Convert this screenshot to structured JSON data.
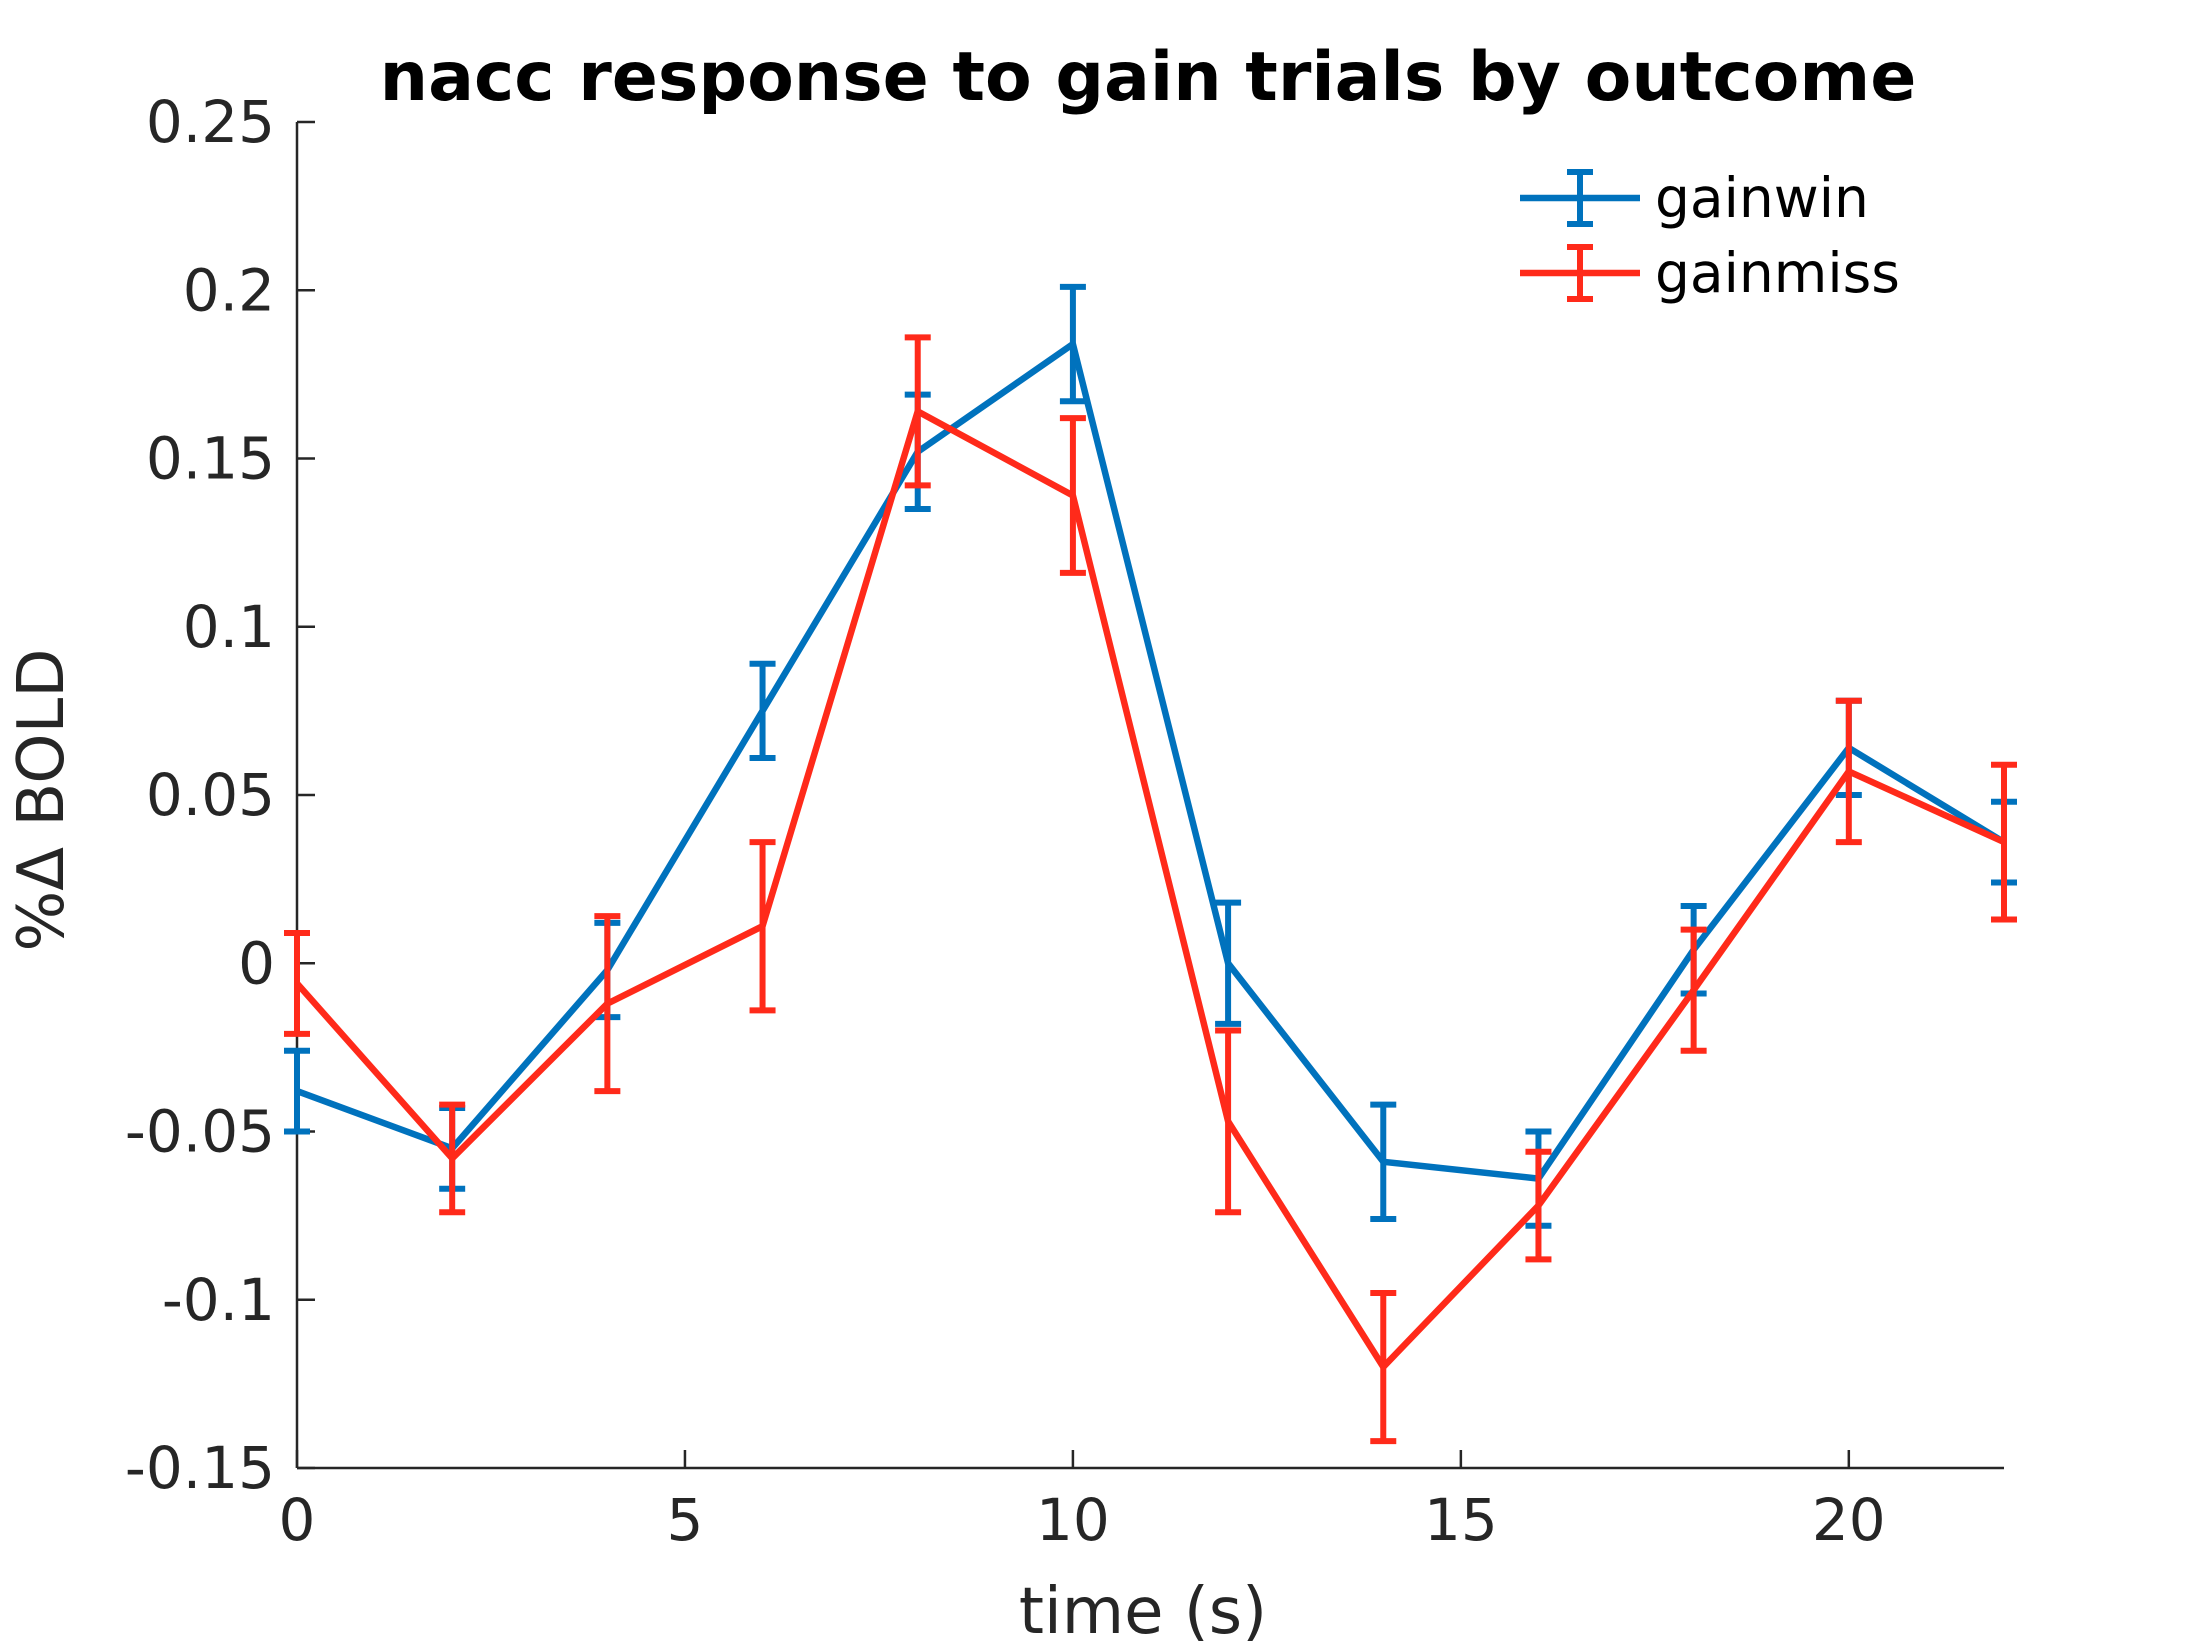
{
  "chart_data": {
    "type": "line",
    "title": "nacc response to gain trials by outcome",
    "xlabel": "time (s)",
    "ylabel": "%Δ BOLD",
    "xlim": [
      0,
      22
    ],
    "ylim": [
      -0.15,
      0.25
    ],
    "x_ticks": [
      0,
      5,
      10,
      15,
      20
    ],
    "y_ticks": [
      -0.15,
      -0.1,
      -0.05,
      0,
      0.05,
      0.1,
      0.15,
      0.2,
      0.25
    ],
    "x_tick_labels": [
      "0",
      "5",
      "10",
      "15",
      "20"
    ],
    "y_tick_labels": [
      "-0.15",
      "-0.1",
      "-0.05",
      "0",
      "0.05",
      "0.1",
      "0.15",
      "0.2",
      "0.25"
    ],
    "x": [
      0,
      2,
      4,
      6,
      8,
      10,
      12,
      14,
      16,
      18,
      20,
      22
    ],
    "grid": false,
    "legend_position": "top-right",
    "series": [
      {
        "name": "gainwin",
        "color": "#0072BD",
        "values": [
          -0.038,
          -0.055,
          -0.002,
          0.075,
          0.152,
          0.184,
          0.0,
          -0.059,
          -0.064,
          0.004,
          0.064,
          0.036
        ],
        "errors": [
          0.012,
          0.012,
          0.014,
          0.014,
          0.017,
          0.017,
          0.018,
          0.017,
          0.014,
          0.013,
          0.014,
          0.012
        ]
      },
      {
        "name": "gainmiss",
        "color": "#FF2A1A",
        "values": [
          -0.006,
          -0.058,
          -0.012,
          0.011,
          0.164,
          0.139,
          -0.047,
          -0.12,
          -0.072,
          -0.008,
          0.057,
          0.036
        ],
        "errors": [
          0.015,
          0.016,
          0.026,
          0.025,
          0.022,
          0.023,
          0.027,
          0.022,
          0.016,
          0.018,
          0.021,
          0.023
        ]
      }
    ]
  }
}
